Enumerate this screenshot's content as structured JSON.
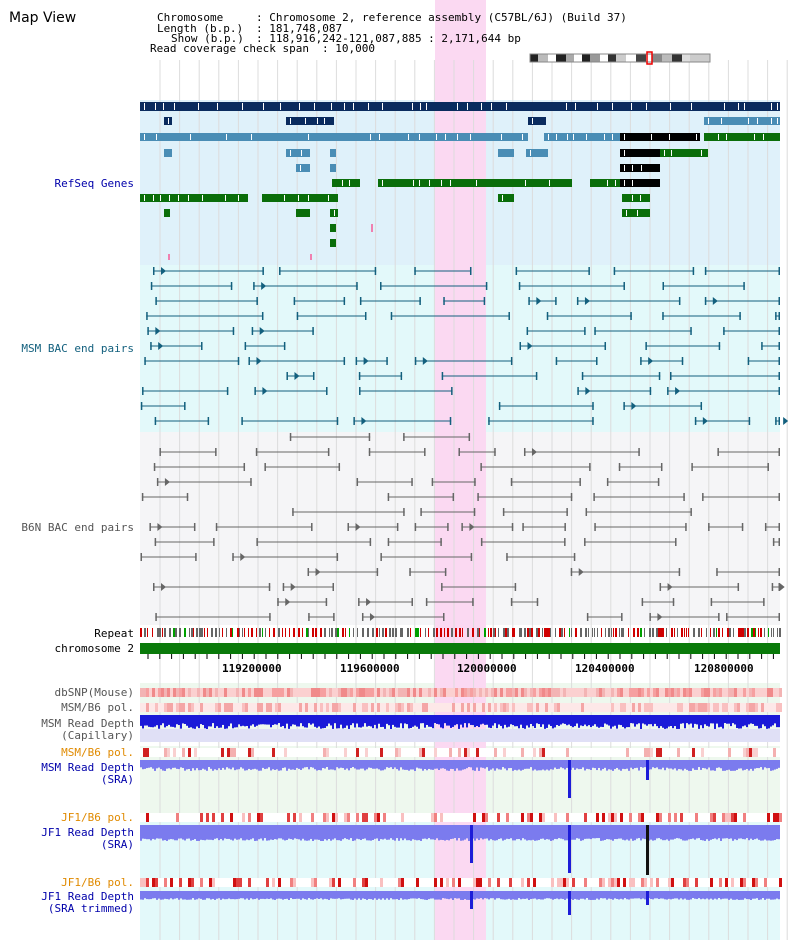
{
  "header": {
    "title": "Map View",
    "chromosome_key": "Chromosome",
    "chromosome_val": ": Chromosome 2, reference assembly (C57BL/6J) (Build 37)",
    "length_key": "Length (b.p.)",
    "length_val": ": 181,748,087",
    "show_key": "Show (b.p.)",
    "show_val": ": 118,916,242-121,087,885 : 2,171,644 bp",
    "coverage_key": "Read coverage check span",
    "coverage_val": ": 10,000"
  },
  "tracks": {
    "refseq": "RefSeq Genes",
    "msm_bac": "MSM BAC end pairs",
    "b6n_bac": "B6N BAC end pairs",
    "repeat": "Repeat",
    "chromosome": "chromosome 2",
    "dbsnp": "dbSNP(Mouse)",
    "msm_b6_pol_1": "MSM/B6 pol.",
    "msm_depth_cap_1": "MSM Read Depth",
    "msm_depth_cap_2": "(Capillary)",
    "msm_b6_pol_2": "MSM/B6 pol.",
    "msm_depth_sra_1": "MSM Read Depth",
    "msm_depth_sra_2": "(SRA)",
    "jf1_b6_pol_1": "JF1/B6 pol.",
    "jf1_depth_sra_1": "JF1 Read Depth",
    "jf1_depth_sra_2": "(SRA)",
    "jf1_b6_pol_2": "JF1/B6 pol.",
    "jf1_depth_trim_1": "JF1 Read Depth",
    "jf1_depth_trim_2": "(SRA trimmed)"
  },
  "axis": {
    "ticks": [
      "119200000",
      "119600000",
      "120000000",
      "120400000",
      "120800000"
    ]
  },
  "colors": {
    "navy": "#0a2b5e",
    "steel": "#4a8db5",
    "green": "#0a6e0a",
    "teal": "#13607e",
    "gray": "#666666",
    "highlight": "#fbd9f2",
    "label_blue": "#0000aa",
    "label_orange": "#e08a00",
    "label_teal": "#13607e",
    "label_gray": "#555555"
  }
}
